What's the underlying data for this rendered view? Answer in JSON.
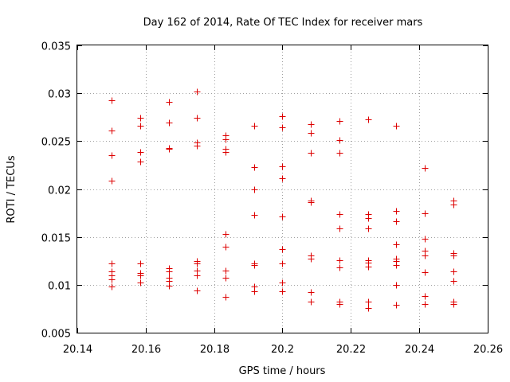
{
  "chart_data": {
    "type": "scatter",
    "title": "Day 162 of 2014, Rate Of TEC Index for receiver mars",
    "xlabel": "GPS time / hours",
    "ylabel": "ROTI / TECUs",
    "xlim": [
      20.14,
      20.26
    ],
    "ylim": [
      0.005,
      0.035
    ],
    "xticks": [
      "20.14",
      "20.16",
      "20.18",
      "20.2",
      "20.22",
      "20.24",
      "20.26"
    ],
    "yticks": [
      "0.005",
      "0.01",
      "0.015",
      "0.02",
      "0.025",
      "0.03",
      "0.035"
    ],
    "grid": true,
    "marker": "plus",
    "color": "#dd0000",
    "series": [
      {
        "name": "ROTI",
        "points": [
          [
            20.15,
            0.0293
          ],
          [
            20.15,
            0.0261
          ],
          [
            20.15,
            0.0235
          ],
          [
            20.15,
            0.0209
          ],
          [
            20.15,
            0.0122
          ],
          [
            20.15,
            0.0114
          ],
          [
            20.15,
            0.011
          ],
          [
            20.15,
            0.0106
          ],
          [
            20.15,
            0.0098
          ],
          [
            20.1583,
            0.0274
          ],
          [
            20.1583,
            0.0266
          ],
          [
            20.1583,
            0.0239
          ],
          [
            20.1583,
            0.0229
          ],
          [
            20.1583,
            0.0122
          ],
          [
            20.1583,
            0.0112
          ],
          [
            20.1583,
            0.011
          ],
          [
            20.1583,
            0.0102
          ],
          [
            20.1667,
            0.0291
          ],
          [
            20.1667,
            0.0269
          ],
          [
            20.1667,
            0.0243
          ],
          [
            20.1667,
            0.0242
          ],
          [
            20.1667,
            0.0117
          ],
          [
            20.1667,
            0.0114
          ],
          [
            20.1667,
            0.0107
          ],
          [
            20.1667,
            0.0104
          ],
          [
            20.1667,
            0.0099
          ],
          [
            20.175,
            0.0302
          ],
          [
            20.175,
            0.0274
          ],
          [
            20.175,
            0.0249
          ],
          [
            20.175,
            0.0245
          ],
          [
            20.175,
            0.0125
          ],
          [
            20.175,
            0.0122
          ],
          [
            20.175,
            0.0115
          ],
          [
            20.175,
            0.011
          ],
          [
            20.175,
            0.0094
          ],
          [
            20.1833,
            0.0256
          ],
          [
            20.1833,
            0.0252
          ],
          [
            20.1833,
            0.0242
          ],
          [
            20.1833,
            0.0239
          ],
          [
            20.1833,
            0.0153
          ],
          [
            20.1833,
            0.014
          ],
          [
            20.1833,
            0.0115
          ],
          [
            20.1833,
            0.0107
          ],
          [
            20.1833,
            0.0087
          ],
          [
            20.1917,
            0.0266
          ],
          [
            20.1917,
            0.0223
          ],
          [
            20.1917,
            0.02
          ],
          [
            20.1917,
            0.0173
          ],
          [
            20.1917,
            0.0122
          ],
          [
            20.1917,
            0.0121
          ],
          [
            20.1917,
            0.0098
          ],
          [
            20.1917,
            0.0093
          ],
          [
            20.2,
            0.0276
          ],
          [
            20.2,
            0.0264
          ],
          [
            20.2,
            0.0224
          ],
          [
            20.2,
            0.0211
          ],
          [
            20.2,
            0.0171
          ],
          [
            20.2,
            0.0137
          ],
          [
            20.2,
            0.0122
          ],
          [
            20.2,
            0.0102
          ],
          [
            20.2,
            0.0093
          ],
          [
            20.2083,
            0.0268
          ],
          [
            20.2083,
            0.0259
          ],
          [
            20.2083,
            0.0238
          ],
          [
            20.2083,
            0.0188
          ],
          [
            20.2083,
            0.0186
          ],
          [
            20.2083,
            0.0131
          ],
          [
            20.2083,
            0.0127
          ],
          [
            20.2083,
            0.0092
          ],
          [
            20.2083,
            0.0082
          ],
          [
            20.2167,
            0.0271
          ],
          [
            20.2167,
            0.0251
          ],
          [
            20.2167,
            0.0238
          ],
          [
            20.2167,
            0.0174
          ],
          [
            20.2167,
            0.0159
          ],
          [
            20.2167,
            0.0126
          ],
          [
            20.2167,
            0.0118
          ],
          [
            20.2167,
            0.0082
          ],
          [
            20.2167,
            0.008
          ],
          [
            20.225,
            0.0273
          ],
          [
            20.225,
            0.0174
          ],
          [
            20.225,
            0.017
          ],
          [
            20.225,
            0.0159
          ],
          [
            20.225,
            0.0126
          ],
          [
            20.225,
            0.0123
          ],
          [
            20.225,
            0.0119
          ],
          [
            20.225,
            0.0082
          ],
          [
            20.225,
            0.0076
          ],
          [
            20.2333,
            0.0266
          ],
          [
            20.2333,
            0.0177
          ],
          [
            20.2333,
            0.0166
          ],
          [
            20.2333,
            0.0142
          ],
          [
            20.2333,
            0.0127
          ],
          [
            20.2333,
            0.0125
          ],
          [
            20.2333,
            0.0121
          ],
          [
            20.2333,
            0.01
          ],
          [
            20.2333,
            0.0079
          ],
          [
            20.2417,
            0.0222
          ],
          [
            20.2417,
            0.0175
          ],
          [
            20.2417,
            0.0148
          ],
          [
            20.2417,
            0.0136
          ],
          [
            20.2417,
            0.0131
          ],
          [
            20.2417,
            0.0113
          ],
          [
            20.2417,
            0.0088
          ],
          [
            20.2417,
            0.008
          ],
          [
            20.25,
            0.0188
          ],
          [
            20.25,
            0.0184
          ],
          [
            20.25,
            0.0133
          ],
          [
            20.25,
            0.0131
          ],
          [
            20.25,
            0.0114
          ],
          [
            20.25,
            0.0104
          ],
          [
            20.25,
            0.0082
          ],
          [
            20.25,
            0.008
          ]
        ]
      }
    ]
  }
}
